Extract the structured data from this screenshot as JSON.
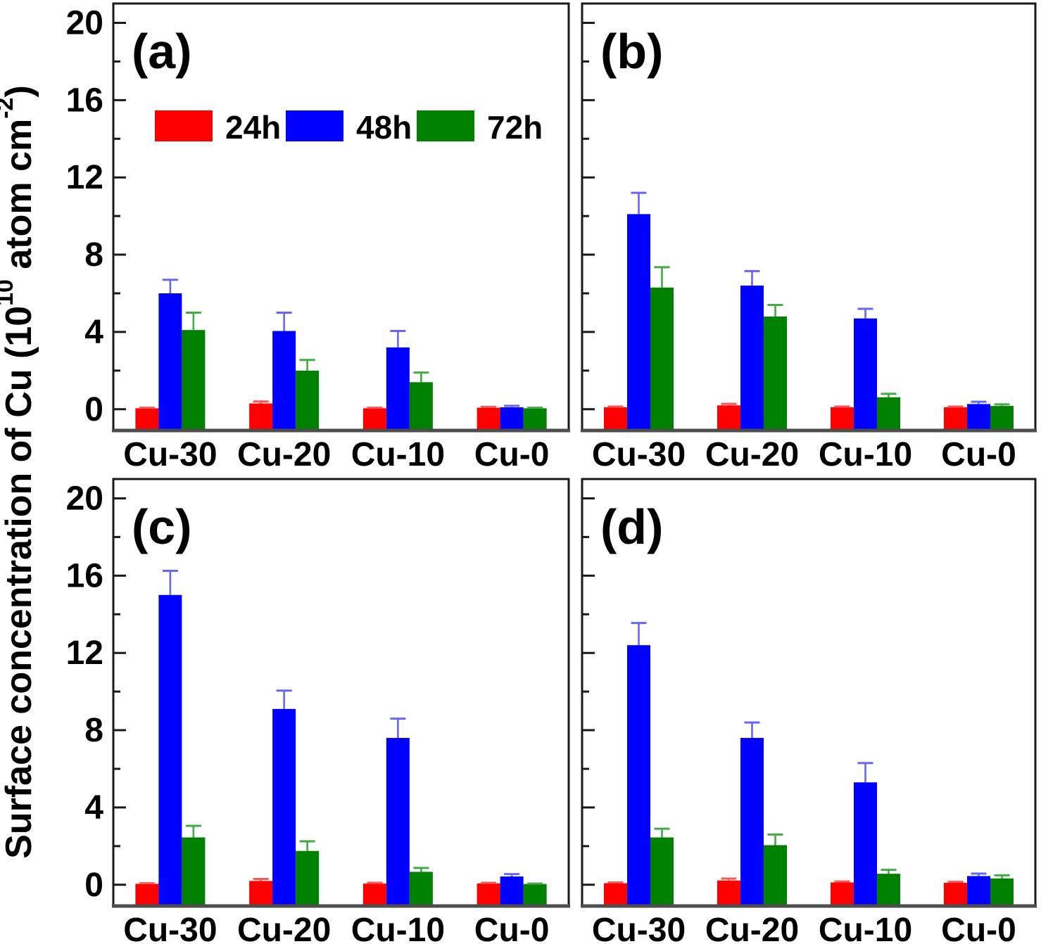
{
  "figure": {
    "kind": "scientific-bar-chart-figure",
    "background": "#ffffff"
  },
  "chart_data": {
    "type": "bar",
    "title": "",
    "ylabel_text": "Surface concentration of Cu  (10^10 atom cm^-2)",
    "ylabel_parts": [
      {
        "t": "Surface concentration of Cu  (10",
        "sup": false
      },
      {
        "t": "10",
        "sup": true
      },
      {
        "t": " atom cm",
        "sup": false
      },
      {
        "t": "-2",
        "sup": true
      },
      {
        "t": ")",
        "sup": false
      }
    ],
    "categories": [
      "Cu-30",
      "Cu-20",
      "Cu-10",
      "Cu-0"
    ],
    "series_names": [
      "24h",
      "48h",
      "72h"
    ],
    "series_colors": {
      "24h": "#ff0000",
      "48h": "#0000ff",
      "72h": "#008000"
    },
    "error_bar_colors": {
      "24h": "#ff5555",
      "48h": "#6666ff",
      "72h": "#44aa44"
    },
    "axis_colors": {
      "frame": "#1a1a1a",
      "baseline": "#4d4d4d",
      "tick": "#1a1a1a",
      "text": "#000000"
    },
    "y_axis": {
      "range": [
        -1.1,
        21.0
      ],
      "major_ticks": [
        0,
        4,
        8,
        12,
        16,
        20
      ],
      "minor_ticks": [
        2,
        6,
        10,
        14,
        18
      ],
      "grid": false
    },
    "legend": {
      "entries": [
        "24h",
        "48h",
        "72h"
      ],
      "position": "inside-top-left-of-panel-a"
    },
    "panels": [
      {
        "label": "(a)",
        "y_tick_labels": true,
        "show_legend": true,
        "series": [
          {
            "name": "24h",
            "values": [
              0.05,
              0.3,
              0.05,
              0.08
            ],
            "errors": [
              0.03,
              0.1,
              0.03,
              0.04
            ]
          },
          {
            "name": "48h",
            "values": [
              6.0,
              4.05,
              3.2,
              0.1
            ],
            "errors": [
              0.7,
              0.95,
              0.85,
              0.08
            ]
          },
          {
            "name": "72h",
            "values": [
              4.1,
              2.0,
              1.4,
              0.05
            ],
            "errors": [
              0.9,
              0.55,
              0.5,
              0.03
            ]
          }
        ]
      },
      {
        "label": "(b)",
        "y_tick_labels": false,
        "show_legend": false,
        "series": [
          {
            "name": "24h",
            "values": [
              0.1,
              0.2,
              0.1,
              0.1
            ],
            "errors": [
              0.04,
              0.08,
              0.04,
              0.04
            ]
          },
          {
            "name": "48h",
            "values": [
              10.1,
              6.4,
              4.7,
              0.27
            ],
            "errors": [
              1.1,
              0.75,
              0.5,
              0.12
            ]
          },
          {
            "name": "72h",
            "values": [
              6.3,
              4.8,
              0.62,
              0.17
            ],
            "errors": [
              1.05,
              0.6,
              0.18,
              0.08
            ]
          }
        ]
      },
      {
        "label": "(c)",
        "y_tick_labels": true,
        "show_legend": false,
        "series": [
          {
            "name": "24h",
            "values": [
              0.05,
              0.2,
              0.06,
              0.07
            ],
            "errors": [
              0.03,
              0.1,
              0.04,
              0.03
            ]
          },
          {
            "name": "48h",
            "values": [
              15.0,
              9.1,
              7.6,
              0.43
            ],
            "errors": [
              1.25,
              0.95,
              1.0,
              0.12
            ]
          },
          {
            "name": "72h",
            "values": [
              2.45,
              1.75,
              0.67,
              0.04
            ],
            "errors": [
              0.6,
              0.5,
              0.2,
              0.02
            ]
          }
        ]
      },
      {
        "label": "(d)",
        "y_tick_labels": false,
        "show_legend": false,
        "series": [
          {
            "name": "24h",
            "values": [
              0.08,
              0.22,
              0.12,
              0.1
            ],
            "errors": [
              0.04,
              0.1,
              0.05,
              0.05
            ]
          },
          {
            "name": "48h",
            "values": [
              12.4,
              7.6,
              5.3,
              0.45
            ],
            "errors": [
              1.15,
              0.8,
              1.0,
              0.13
            ]
          },
          {
            "name": "72h",
            "values": [
              2.45,
              2.05,
              0.57,
              0.33
            ],
            "errors": [
              0.45,
              0.55,
              0.2,
              0.16
            ]
          }
        ]
      }
    ]
  }
}
